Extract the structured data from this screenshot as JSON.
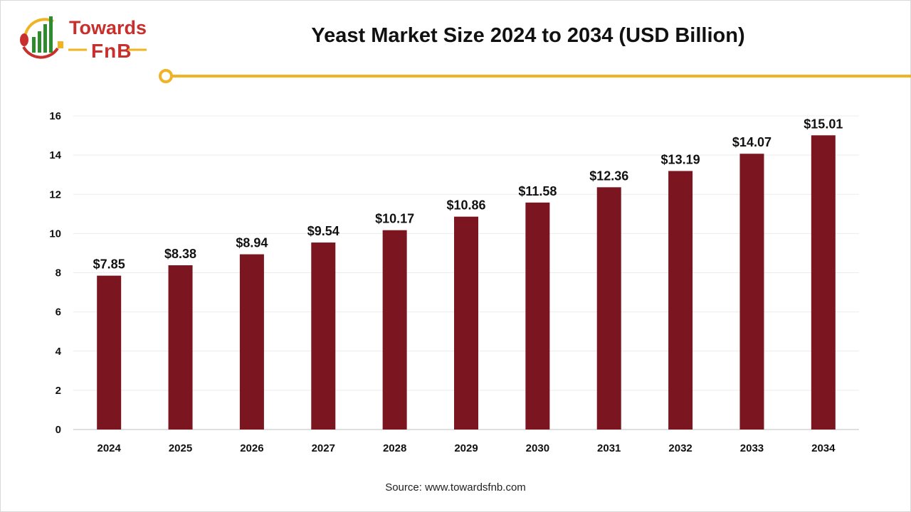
{
  "logo": {
    "line1": "Towards",
    "line2": "FnB"
  },
  "colors": {
    "bar": "#7b1621",
    "accent": "#f0b323",
    "logo_red": "#c8302e",
    "logo_green": "#2e8b2e"
  },
  "source": "Source: www.towardsfnb.com",
  "chart_data": {
    "type": "bar",
    "title": "Yeast Market Size 2024 to 2034 (USD Billion)",
    "categories": [
      "2024",
      "2025",
      "2026",
      "2027",
      "2028",
      "2029",
      "2030",
      "2031",
      "2032",
      "2033",
      "2034"
    ],
    "values": [
      7.85,
      8.38,
      8.94,
      9.54,
      10.17,
      10.86,
      11.58,
      12.36,
      13.19,
      14.07,
      15.01
    ],
    "data_labels": [
      "$7.85",
      "$8.38",
      "$8.94",
      "$9.54",
      "$10.17",
      "$10.86",
      "$11.58",
      "$12.36",
      "$13.19",
      "$14.07",
      "$15.01"
    ],
    "ylim": [
      0,
      16
    ],
    "yticks": [
      0,
      2,
      4,
      6,
      8,
      10,
      12,
      14,
      16
    ],
    "grid": true,
    "xlabel": "",
    "ylabel": ""
  }
}
